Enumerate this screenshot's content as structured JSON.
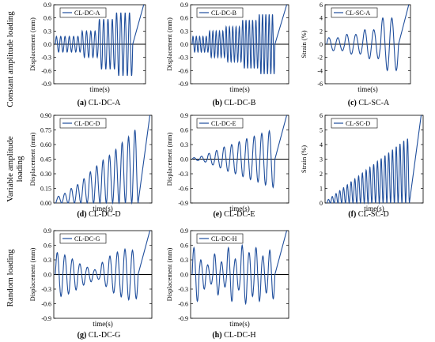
{
  "row_labels": [
    [
      "Constant amplitude loading"
    ],
    [
      "Variable amplitude",
      "loading"
    ],
    [
      "Random loading"
    ]
  ],
  "chart_data": [
    {
      "type": "line",
      "id": "a",
      "caption_letter": "(a)",
      "caption_text": "CL-DC-A",
      "legend": "CL-DC-A",
      "xlabel": "time(s)",
      "ylabel": "Displacement (mm)",
      "ylim": [
        -0.9,
        0.9
      ],
      "yticks": [
        "-0.9",
        "-0.6",
        "-0.3",
        "0.0",
        "0.3",
        "0.6",
        "0.9"
      ],
      "series": [
        {
          "name": "CL-DC-A",
          "color": "#1f4e9c",
          "blocks": [
            {
              "cycles": 6,
              "amplitude": 0.18
            },
            {
              "cycles": 4,
              "amplitude": 0.3
            },
            {
              "cycles": 4,
              "amplitude": 0.57
            },
            {
              "cycles": 4,
              "amplitude": 0.72
            }
          ],
          "failure_rise": 0.9
        }
      ]
    },
    {
      "type": "line",
      "id": "b",
      "caption_letter": "(b)",
      "caption_text": "CL-DC-B",
      "legend": "CL-DC-B",
      "xlabel": "time(s)",
      "ylabel": "Displacement (mm)",
      "ylim": [
        -0.9,
        0.9
      ],
      "yticks": [
        "-0.9",
        "-0.6",
        "-0.3",
        "0.0",
        "0.3",
        "0.6",
        "0.9"
      ],
      "series": [
        {
          "name": "CL-DC-B",
          "color": "#1f4e9c",
          "blocks": [
            {
              "cycles": 5,
              "amplitude": 0.18
            },
            {
              "cycles": 5,
              "amplitude": 0.3
            },
            {
              "cycles": 5,
              "amplitude": 0.4
            },
            {
              "cycles": 5,
              "amplitude": 0.55
            },
            {
              "cycles": 5,
              "amplitude": 0.68
            }
          ],
          "failure_rise": 0.9
        }
      ]
    },
    {
      "type": "line",
      "id": "c",
      "caption_letter": "(c)",
      "caption_text": "CL-SC-A",
      "legend": "CL-SC-A",
      "xlabel": "time(s)",
      "ylabel": "Strain (%)",
      "ylim": [
        -6,
        6
      ],
      "yticks": [
        "-6",
        "-4",
        "-2",
        "0",
        "2",
        "4",
        "6"
      ],
      "series": [
        {
          "name": "CL-SC-A",
          "color": "#1f4e9c",
          "blocks": [
            {
              "cycles": 2,
              "amplitude": 1.0
            },
            {
              "cycles": 2,
              "amplitude": 1.5
            },
            {
              "cycles": 2,
              "amplitude": 2.2
            },
            {
              "cycles": 2,
              "amplitude": 4.0
            }
          ],
          "failure_rise": 6
        }
      ]
    },
    {
      "type": "line",
      "id": "d",
      "caption_letter": "(d)",
      "caption_text": "CL-DC-D",
      "legend": "CL-DC-D",
      "xlabel": "time(s)",
      "ylabel": "Displacement (mm)",
      "ylim": [
        0,
        0.9
      ],
      "yticks": [
        "0.00",
        "0.15",
        "0.30",
        "0.45",
        "0.60",
        "0.75",
        "0.90"
      ],
      "series": [
        {
          "name": "CL-DC-D",
          "color": "#1f4e9c",
          "cycles": [
            0.07,
            0.1,
            0.15,
            0.19,
            0.25,
            0.32,
            0.38,
            0.44,
            0.49,
            0.55,
            0.62,
            0.68,
            0.75
          ],
          "baseline": 0,
          "failure_rise": 0.9
        }
      ]
    },
    {
      "type": "line",
      "id": "e",
      "caption_letter": "(e)",
      "caption_text": "CL-DC-E",
      "legend": "CL-DC-E",
      "xlabel": "time(s)",
      "ylabel": "Displacement (mm)",
      "ylim": [
        -0.9,
        0.9
      ],
      "yticks": [
        "-0.9",
        "-0.6",
        "-0.3",
        "0.0",
        "0.3",
        "0.6",
        "0.9"
      ],
      "series": [
        {
          "name": "CL-DC-E",
          "color": "#1f4e9c",
          "cycles": [
            0.03,
            0.06,
            0.12,
            0.18,
            0.25,
            0.3,
            0.36,
            0.42,
            0.47,
            0.53,
            0.58
          ],
          "failure_rise": 0.9
        }
      ]
    },
    {
      "type": "line",
      "id": "f",
      "caption_letter": "(f)",
      "caption_text": "CL-SC-D",
      "legend": "CL-SC-D",
      "xlabel": "time(s)",
      "ylabel": "Strain (%)",
      "ylim": [
        0,
        6
      ],
      "yticks": [
        "0",
        "1",
        "2",
        "3",
        "4",
        "5",
        "6"
      ],
      "series": [
        {
          "name": "CL-SC-D",
          "color": "#1f4e9c",
          "cycles": [
            0.25,
            0.45,
            0.65,
            0.85,
            1.05,
            1.25,
            1.45,
            1.65,
            1.85,
            2.05,
            2.25,
            2.45,
            2.65,
            2.85,
            3.05,
            3.25,
            3.45,
            3.65,
            3.85,
            4.05,
            4.25,
            4.4
          ],
          "baseline": 0,
          "failure_rise": 6
        }
      ]
    },
    {
      "type": "line",
      "id": "g",
      "caption_letter": "(g)",
      "caption_text": "CL-DC-G",
      "legend": "CL-DC-G",
      "xlabel": "time(s)",
      "ylabel": "Displacement (mm)",
      "ylim": [
        -0.9,
        0.9
      ],
      "yticks": [
        "-0.9",
        "-0.6",
        "-0.3",
        "0.0",
        "0.3",
        "0.6",
        "0.9"
      ],
      "series": [
        {
          "name": "CL-DC-G",
          "color": "#1f4e9c",
          "cycles": [
            0.45,
            0.4,
            0.32,
            0.22,
            0.15,
            0.1,
            0.25,
            0.38,
            0.46,
            0.52,
            0.5
          ],
          "failure_rise": 0.9
        }
      ]
    },
    {
      "type": "line",
      "id": "h",
      "caption_letter": "(h)",
      "caption_text": "CL-DC-H",
      "legend": "CL-DC-H",
      "xlabel": "time(s)",
      "ylabel": "Displacement (mm)",
      "ylim": [
        -0.9,
        0.9
      ],
      "yticks": [
        "-0.9",
        "-0.6",
        "-0.3",
        "0.0",
        "0.3",
        "0.6",
        "0.9"
      ],
      "series": [
        {
          "name": "CL-DC-H",
          "color": "#1f4e9c",
          "cycles": [
            0.55,
            0.3,
            0.2,
            0.42,
            0.26,
            0.55,
            0.32,
            0.6,
            0.45,
            0.55,
            0.38,
            0.5
          ],
          "failure_rise": 0.9
        }
      ]
    }
  ]
}
